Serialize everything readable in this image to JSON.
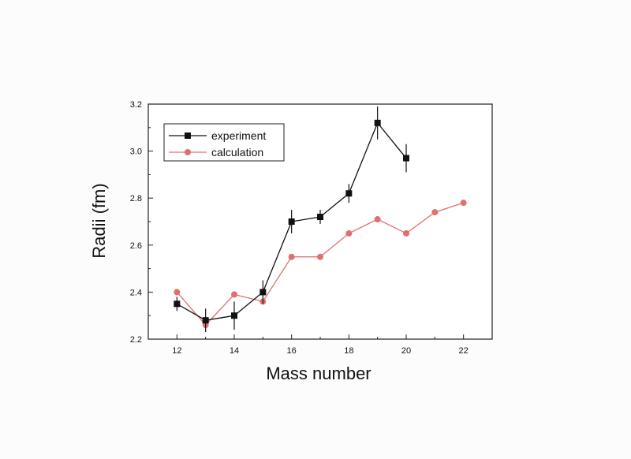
{
  "chart_data": {
    "type": "line",
    "title": "",
    "xlabel": "Mass number",
    "ylabel": "Radii (fm)",
    "xlim": [
      11,
      23
    ],
    "ylim": [
      2.2,
      3.2
    ],
    "x_ticks": [
      12,
      14,
      16,
      18,
      20,
      22
    ],
    "y_ticks": [
      2.2,
      2.4,
      2.6,
      2.8,
      3.0,
      3.2
    ],
    "y_tick_labels": [
      "2.2",
      "2.4",
      "2.6",
      "2.8",
      "3.0",
      "3.2"
    ],
    "grid": false,
    "legend_position": "top-left",
    "series": [
      {
        "name": "experiment",
        "marker": "square",
        "color": "#111111",
        "x": [
          12,
          13,
          14,
          15,
          16,
          17,
          18,
          19,
          20
        ],
        "y": [
          2.35,
          2.28,
          2.3,
          2.4,
          2.7,
          2.72,
          2.82,
          3.12,
          2.97
        ],
        "error": [
          0.03,
          0.05,
          0.06,
          0.05,
          0.05,
          0.03,
          0.04,
          0.07,
          0.06
        ]
      },
      {
        "name": "calculation",
        "marker": "circle",
        "color": "#e07070",
        "x": [
          12,
          13,
          14,
          15,
          16,
          17,
          18,
          19,
          20,
          21,
          22
        ],
        "y": [
          2.4,
          2.26,
          2.39,
          2.36,
          2.55,
          2.55,
          2.65,
          2.71,
          2.65,
          2.74,
          2.78
        ]
      }
    ]
  }
}
